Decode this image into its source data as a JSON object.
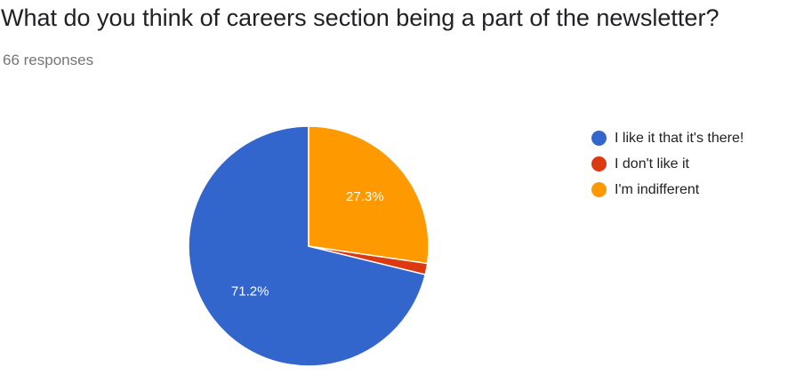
{
  "header": {
    "title": "What do you think of careers section being a part of the newsletter?",
    "responses": "66 responses"
  },
  "chart_data": {
    "type": "pie",
    "title": "What do you think of careers section being a part of the newsletter?",
    "slices": [
      {
        "label": "I like it that it's there!",
        "value": 71.2,
        "display": "71.2%",
        "color": "#3366cc"
      },
      {
        "label": "I don't like it",
        "value": 1.5,
        "display": "",
        "color": "#dc3912"
      },
      {
        "label": "I'm indifferent",
        "value": 27.3,
        "display": "27.3%",
        "color": "#ff9900"
      }
    ],
    "legend_position": "right"
  }
}
